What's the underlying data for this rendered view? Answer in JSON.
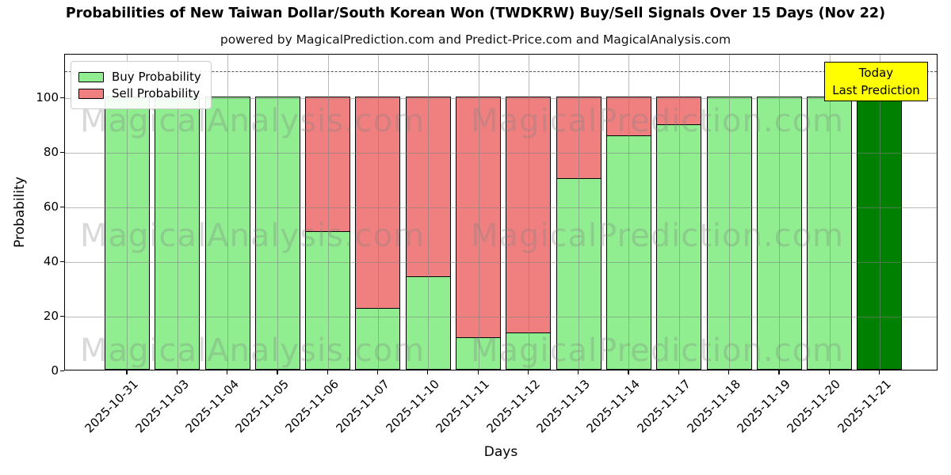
{
  "title": "Probabilities of New Taiwan Dollar/South Korean Won (TWDKRW) Buy/Sell Signals Over 15 Days (Nov 22)",
  "subtitle": "powered by MagicalPrediction.com and Predict-Price.com and MagicalAnalysis.com",
  "watermarks": {
    "left": "MagicalAnalysis.com",
    "right": "MagicalPrediction.com",
    "color": "rgba(128,128,128,0.3)"
  },
  "annotation": {
    "line1": "Today",
    "line2": "Last Prediction",
    "bg_color": "#ffff00"
  },
  "legend": [
    {
      "label": "Buy Probability",
      "color": "#90ee90"
    },
    {
      "label": "Sell Probability",
      "color": "#f08080"
    }
  ],
  "colors": {
    "buy": "#90ee90",
    "sell": "#f08080",
    "today_bar": "#008000",
    "bar_edge": "#000000",
    "grid": "rgba(128,128,128,0.55)",
    "dashed_line": "#555555"
  },
  "chart_data": {
    "type": "bar",
    "stacked": true,
    "title": "Probabilities of New Taiwan Dollar/South Korean Won (TWDKRW) Buy/Sell Signals Over 15 Days (Nov 22)",
    "subtitle": "powered by MagicalPrediction.com and Predict-Price.com and MagicalAnalysis.com",
    "categories": [
      "2025-10-31",
      "2025-11-03",
      "2025-11-04",
      "2025-11-05",
      "2025-11-06",
      "2025-11-07",
      "2025-11-10",
      "2025-11-11",
      "2025-11-12",
      "2025-11-13",
      "2025-11-14",
      "2025-11-17",
      "2025-11-18",
      "2025-11-19",
      "2025-11-20",
      "2025-11-21"
    ],
    "series": [
      {
        "name": "Buy Probability",
        "color": "#90ee90",
        "values": [
          100,
          100,
          100,
          100,
          51,
          23,
          34.5,
          12,
          14,
          70.5,
          86,
          90,
          100,
          100,
          100,
          100
        ]
      },
      {
        "name": "Sell Probability",
        "color": "#f08080",
        "values": [
          0,
          0,
          0,
          0,
          49,
          77,
          65.5,
          88,
          86,
          29.5,
          14,
          10,
          0,
          0,
          0,
          0
        ]
      }
    ],
    "today_index": 15,
    "today_bar_color": "#008000",
    "xlabel": "Days",
    "ylabel": "Probability",
    "yticks": [
      0,
      20,
      40,
      60,
      80,
      100
    ],
    "ylim": [
      0,
      116
    ],
    "dashed_line_y": 110,
    "grid": true,
    "legend_position": "upper left"
  }
}
